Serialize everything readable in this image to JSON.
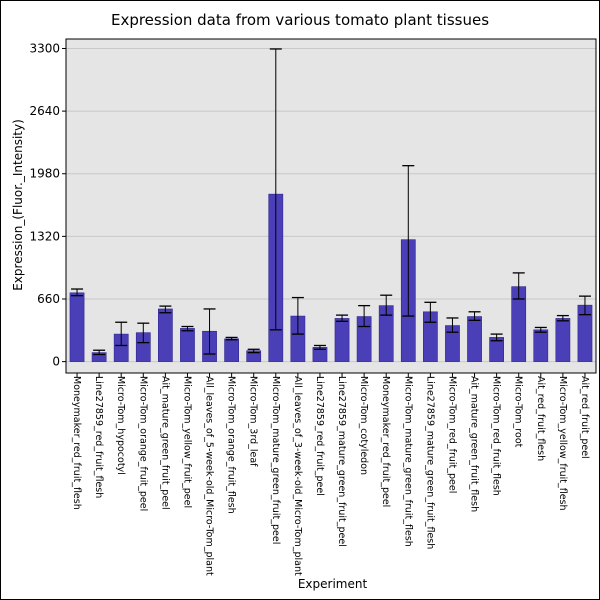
{
  "chart_data": {
    "type": "bar",
    "title": "Expression data from various tomato plant tissues",
    "xlabel": "Experiment",
    "ylabel": "Expression_(Fluor._Intensity)",
    "ylim": [
      -120,
      3400
    ],
    "yticks": [
      0,
      660,
      1320,
      1980,
      2640,
      3300
    ],
    "grid": true,
    "bar_color": "#4b3fb8",
    "background_color": "#e5e5e5",
    "grid_color": "#c8c8c8",
    "categories": [
      "Moneymaker_red_fruit_flesh",
      "Line27859_red_fruit_flesh",
      "Micro-Tom_hypocotyl",
      "Micro-Tom_orange_fruit_peel",
      "Ait_mature_green_fruit_peel",
      "Micro-Tom_yellow_fruit_peel",
      "All_leaves_of_5-week-old_Micro-Tom_plant",
      "Micro-Tom_orange_fruit_flesh",
      "Micro-Tom_3rd_leaf",
      "Micro-Tom_mature_green_fruit_peel",
      "All_leaves_of_3-week-old_Micro-Tom_plant",
      "Line27859_red_fruit_peel",
      "Line27859_mature_green_fruit_peel",
      "Micro-Tom_cotyledon",
      "Moneymaker_red_fruit_peel",
      "Micro-Tom_mature_green_fruit_flesh",
      "Line27859_mature_green_fruit_flesh",
      "Micro-Tom_red_fruit_peel",
      "Ait_mature_green_fruit_flesh",
      "Micro-Tom_red_fruit_flesh",
      "Micro-Tom_root",
      "Ait_red_fruit_flesh",
      "Micro-Tom_yellow_fruit_flesh",
      "Ait_red_fruit_peel"
    ],
    "values": [
      725,
      95,
      290,
      305,
      555,
      350,
      320,
      240,
      115,
      1765,
      480,
      150,
      455,
      475,
      590,
      1285,
      525,
      380,
      475,
      255,
      790,
      335,
      455,
      595
    ],
    "error_low": [
      695,
      75,
      170,
      200,
      515,
      325,
      80,
      230,
      95,
      335,
      290,
      130,
      425,
      370,
      490,
      480,
      415,
      310,
      435,
      220,
      660,
      310,
      430,
      495
    ],
    "error_high": [
      765,
      120,
      415,
      405,
      585,
      370,
      555,
      255,
      130,
      3295,
      675,
      170,
      490,
      590,
      700,
      2065,
      625,
      460,
      525,
      290,
      935,
      360,
      485,
      690
    ]
  }
}
